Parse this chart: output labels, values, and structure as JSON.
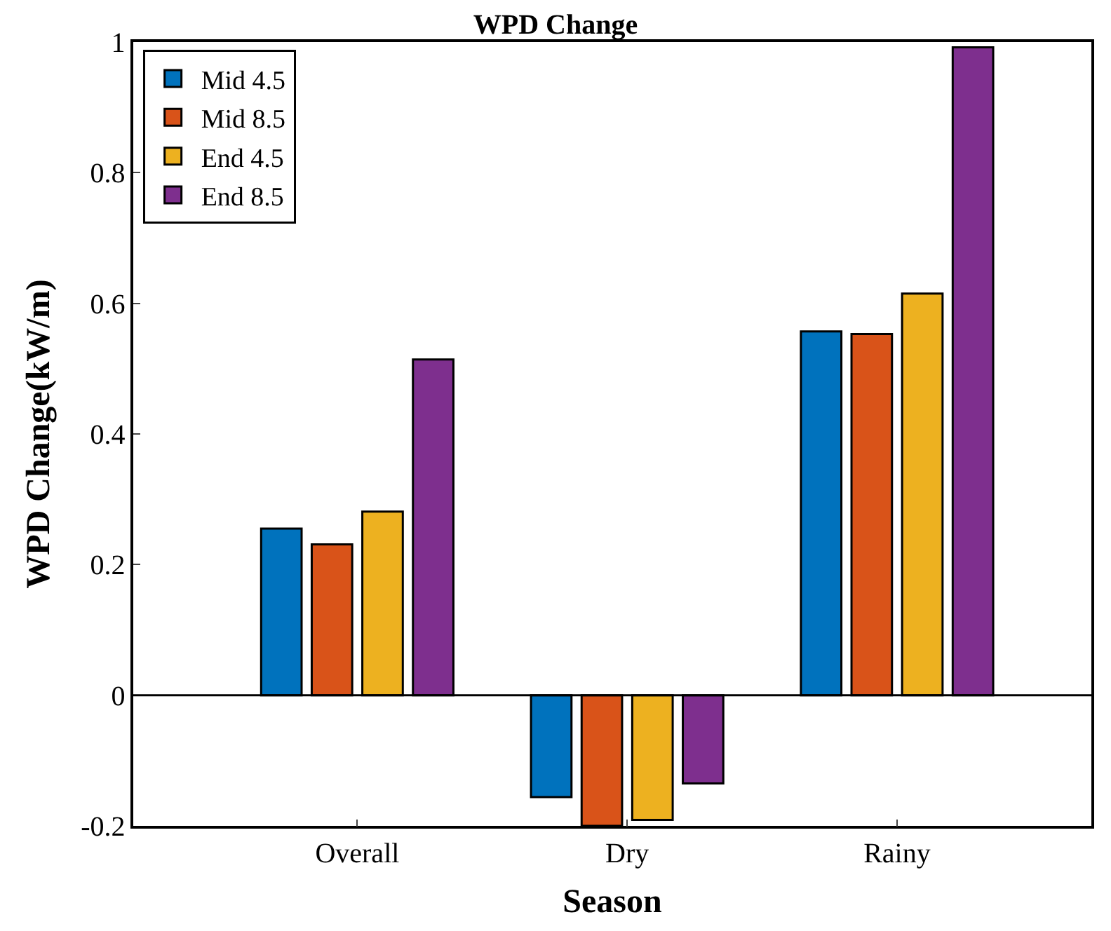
{
  "chart_data": {
    "type": "bar",
    "title": "WPD Change",
    "xlabel": "Season",
    "ylabel": "WPD Change(kW/m)",
    "categories": [
      "Overall",
      "Dry",
      "Rainy"
    ],
    "series": [
      {
        "name": "Mid 4.5",
        "color": "#0072bd",
        "values": [
          0.255,
          -0.156,
          0.557
        ]
      },
      {
        "name": "Mid 8.5",
        "color": "#d95319",
        "values": [
          0.231,
          -0.2,
          0.553
        ]
      },
      {
        "name": "End 4.5",
        "color": "#edb120",
        "values": [
          0.281,
          -0.191,
          0.615
        ]
      },
      {
        "name": "End 8.5",
        "color": "#7e2f8e",
        "values": [
          0.514,
          -0.135,
          0.992
        ]
      }
    ],
    "ylim": [
      -0.2,
      1
    ],
    "yticks": [
      -0.2,
      0,
      0.2,
      0.4,
      0.6,
      0.8,
      1
    ],
    "ref_lines": [
      {
        "axis": "y",
        "value": 0,
        "color": "#000000"
      }
    ],
    "legend": "top left"
  }
}
